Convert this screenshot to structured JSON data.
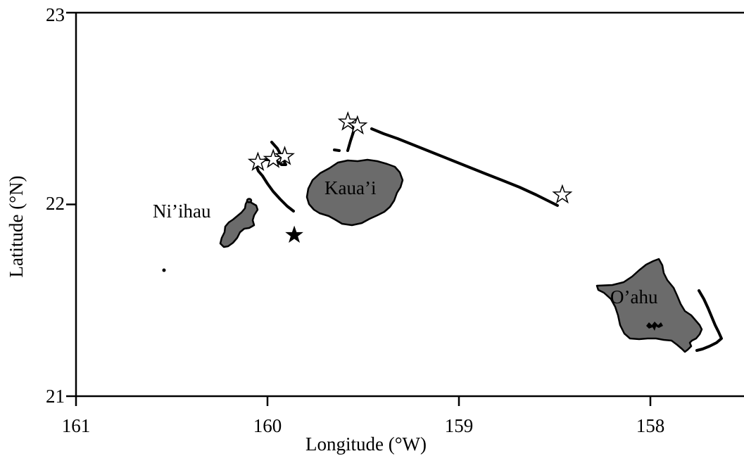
{
  "map": {
    "x_axis": {
      "title": "Longitude (°W)",
      "ticks": [
        {
          "value": 161,
          "label": "161"
        },
        {
          "value": 160,
          "label": "160"
        },
        {
          "value": 159,
          "label": "159"
        },
        {
          "value": 158,
          "label": "158"
        }
      ],
      "range": [
        161,
        157.5
      ]
    },
    "y_axis": {
      "title": "Latitude (°N)",
      "ticks": [
        {
          "value": 23,
          "label": "23"
        },
        {
          "value": 22,
          "label": "22"
        },
        {
          "value": 21,
          "label": "21"
        }
      ],
      "range": [
        21,
        23
      ]
    },
    "colors": {
      "land": "#6b6b6b",
      "outline": "#000000",
      "background": "#ffffff"
    },
    "islands": [
      {
        "name": "Ni'ihau",
        "label": "Ni’ihau"
      },
      {
        "name": "Kaua'i",
        "label": "Kaua’i"
      },
      {
        "name": "O'ahu",
        "label": "O’ahu"
      }
    ],
    "markers": {
      "open_stars": [
        {
          "lon": 160.05,
          "lat": 22.22
        },
        {
          "lon": 159.97,
          "lat": 22.235
        },
        {
          "lon": 159.91,
          "lat": 22.25
        },
        {
          "lon": 159.58,
          "lat": 22.43
        },
        {
          "lon": 159.53,
          "lat": 22.41
        },
        {
          "lon": 158.46,
          "lat": 22.05
        }
      ],
      "filled_stars": [
        {
          "lon": 159.86,
          "lat": 21.84
        }
      ]
    }
  }
}
